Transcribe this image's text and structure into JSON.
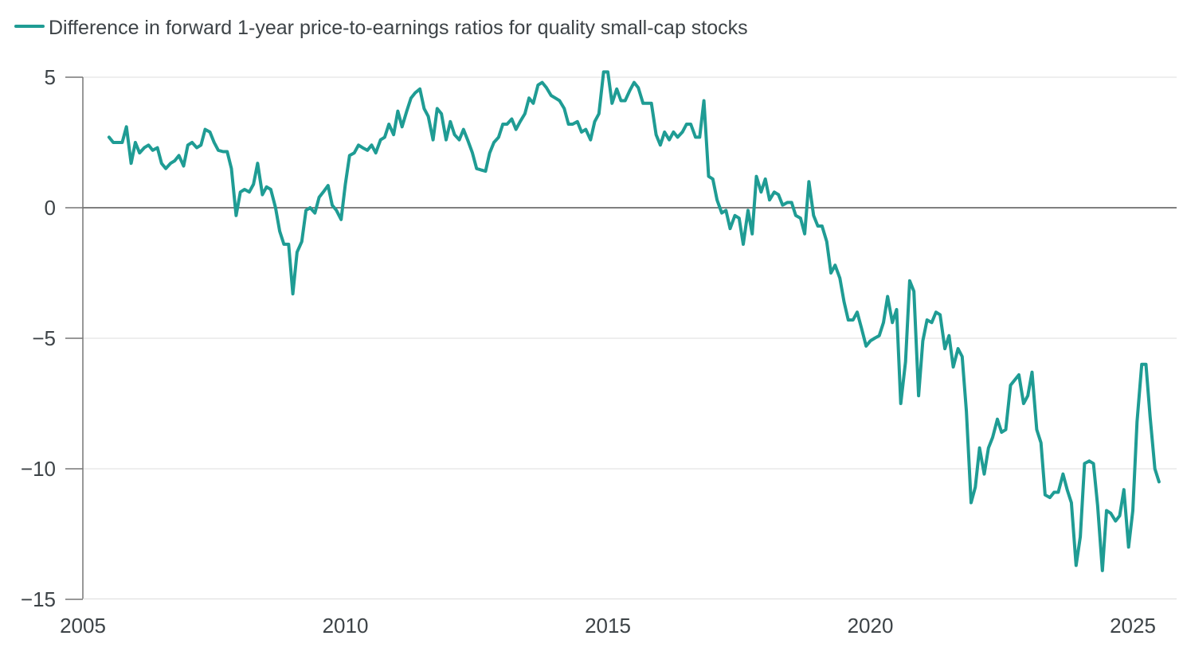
{
  "legend": {
    "label": "Difference in forward 1-year price-to-earnings ratios for quality small-cap stocks"
  },
  "colors": {
    "series": "#1f9c94",
    "grid": "#dcdcdc",
    "zero_line": "#555555",
    "axis": "#777777",
    "text": "#3d4347"
  },
  "chart_data": {
    "type": "line",
    "title": "",
    "xlabel": "",
    "ylabel": "",
    "xlim": [
      2005,
      2025.7
    ],
    "ylim": [
      -15,
      5
    ],
    "grid": true,
    "legend_position": "top-left",
    "x_ticks": [
      2005,
      2010,
      2015,
      2020,
      2025
    ],
    "x_tick_labels": [
      "2005",
      "2010",
      "2015",
      "2020",
      "2025"
    ],
    "y_ticks": [
      5,
      0,
      -5,
      -10,
      -15
    ],
    "y_tick_labels": [
      "5",
      "0",
      "−5",
      "−10",
      "−15"
    ],
    "series": [
      {
        "name": "Difference in forward 1-year price-to-earnings ratios for quality small-cap stocks",
        "x": [
          2005.5,
          2005.58,
          2005.67,
          2005.75,
          2005.83,
          2005.92,
          2006.0,
          2006.08,
          2006.17,
          2006.25,
          2006.33,
          2006.42,
          2006.5,
          2006.58,
          2006.67,
          2006.75,
          2006.83,
          2006.92,
          2007.0,
          2007.08,
          2007.17,
          2007.25,
          2007.33,
          2007.42,
          2007.5,
          2007.58,
          2007.67,
          2007.75,
          2007.83,
          2007.92,
          2008.0,
          2008.08,
          2008.17,
          2008.25,
          2008.33,
          2008.42,
          2008.5,
          2008.58,
          2008.67,
          2008.75,
          2008.83,
          2008.92,
          2009.0,
          2009.08,
          2009.17,
          2009.25,
          2009.33,
          2009.42,
          2009.5,
          2009.58,
          2009.67,
          2009.75,
          2009.83,
          2009.92,
          2010.0,
          2010.08,
          2010.17,
          2010.25,
          2010.33,
          2010.42,
          2010.5,
          2010.58,
          2010.67,
          2010.75,
          2010.83,
          2010.92,
          2011.0,
          2011.08,
          2011.17,
          2011.25,
          2011.33,
          2011.42,
          2011.5,
          2011.58,
          2011.67,
          2011.75,
          2011.83,
          2011.92,
          2012.0,
          2012.08,
          2012.17,
          2012.25,
          2012.33,
          2012.42,
          2012.5,
          2012.58,
          2012.67,
          2012.75,
          2012.83,
          2012.92,
          2013.0,
          2013.08,
          2013.17,
          2013.25,
          2013.33,
          2013.42,
          2013.5,
          2013.58,
          2013.67,
          2013.75,
          2013.83,
          2013.92,
          2014.0,
          2014.08,
          2014.17,
          2014.25,
          2014.33,
          2014.42,
          2014.5,
          2014.58,
          2014.67,
          2014.75,
          2014.83,
          2014.92,
          2015.0,
          2015.08,
          2015.17,
          2015.25,
          2015.33,
          2015.42,
          2015.5,
          2015.58,
          2015.67,
          2015.75,
          2015.83,
          2015.92,
          2016.0,
          2016.08,
          2016.17,
          2016.25,
          2016.33,
          2016.42,
          2016.5,
          2016.58,
          2016.67,
          2016.75,
          2016.83,
          2016.92,
          2017.0,
          2017.08,
          2017.17,
          2017.25,
          2017.33,
          2017.42,
          2017.5,
          2017.58,
          2017.67,
          2017.75,
          2017.83,
          2017.92,
          2018.0,
          2018.08,
          2018.17,
          2018.25,
          2018.33,
          2018.42,
          2018.5,
          2018.58,
          2018.67,
          2018.75,
          2018.83,
          2018.92,
          2019.0,
          2019.08,
          2019.17,
          2019.25,
          2019.33,
          2019.42,
          2019.5,
          2019.58,
          2019.67,
          2019.75,
          2019.83,
          2019.92,
          2020.0,
          2020.08,
          2020.17,
          2020.25,
          2020.33,
          2020.42,
          2020.5,
          2020.58,
          2020.67,
          2020.75,
          2020.83,
          2020.92,
          2021.0,
          2021.08,
          2021.17,
          2021.25,
          2021.33,
          2021.42,
          2021.5,
          2021.58,
          2021.67,
          2021.75,
          2021.83,
          2021.92,
          2022.0,
          2022.08,
          2022.17,
          2022.25,
          2022.33,
          2022.42,
          2022.5,
          2022.58,
          2022.67,
          2022.75,
          2022.83,
          2022.92,
          2023.0,
          2023.08,
          2023.17,
          2023.25,
          2023.33,
          2023.42,
          2023.5,
          2023.58,
          2023.67,
          2023.75,
          2023.83,
          2023.92,
          2024.0,
          2024.08,
          2024.17,
          2024.25,
          2024.33,
          2024.42,
          2024.5,
          2024.58,
          2024.67,
          2024.75,
          2024.83,
          2024.92,
          2025.0,
          2025.08,
          2025.17,
          2025.25,
          2025.33,
          2025.42,
          2025.5
        ],
        "values": [
          2.7,
          2.5,
          2.5,
          2.5,
          3.1,
          1.7,
          2.5,
          2.1,
          2.3,
          2.4,
          2.2,
          2.3,
          1.7,
          1.5,
          1.7,
          1.8,
          2.0,
          1.6,
          2.4,
          2.5,
          2.3,
          2.4,
          3.0,
          2.9,
          2.5,
          2.2,
          2.15,
          2.15,
          1.5,
          -0.3,
          0.6,
          0.7,
          0.6,
          0.9,
          1.7,
          0.5,
          0.8,
          0.7,
          0.0,
          -0.9,
          -1.4,
          -1.4,
          -3.3,
          -1.7,
          -1.3,
          -0.1,
          0.0,
          -0.2,
          0.4,
          0.6,
          0.85,
          0.1,
          -0.1,
          -0.45,
          0.9,
          2.0,
          2.1,
          2.4,
          2.3,
          2.2,
          2.4,
          2.1,
          2.6,
          2.7,
          3.2,
          2.8,
          3.7,
          3.1,
          3.7,
          4.2,
          4.4,
          4.55,
          3.8,
          3.5,
          2.6,
          3.8,
          3.6,
          2.6,
          3.3,
          2.8,
          2.6,
          3.0,
          2.6,
          2.1,
          1.5,
          1.45,
          1.4,
          2.1,
          2.5,
          2.7,
          3.2,
          3.2,
          3.4,
          3.0,
          3.3,
          3.6,
          4.2,
          4.0,
          4.7,
          4.8,
          4.6,
          4.3,
          4.2,
          4.1,
          3.8,
          3.2,
          3.2,
          3.3,
          2.9,
          3.0,
          2.6,
          3.3,
          3.6,
          5.2,
          5.2,
          4.0,
          4.55,
          4.1,
          4.1,
          4.5,
          4.8,
          4.6,
          4.0,
          4.0,
          4.0,
          2.8,
          2.4,
          2.9,
          2.6,
          2.9,
          2.7,
          2.9,
          3.2,
          3.2,
          2.7,
          2.7,
          4.1,
          1.2,
          1.1,
          0.3,
          -0.2,
          -0.1,
          -0.8,
          -0.3,
          -0.4,
          -1.4,
          -0.1,
          -1.0,
          1.2,
          0.6,
          1.1,
          0.3,
          0.6,
          0.5,
          0.1,
          0.2,
          0.2,
          -0.3,
          -0.4,
          -1.0,
          1.0,
          -0.3,
          -0.7,
          -0.7,
          -1.3,
          -2.5,
          -2.2,
          -2.7,
          -3.6,
          -4.3,
          -4.3,
          -4.0,
          -4.6,
          -5.3,
          -5.1,
          -5.0,
          -4.9,
          -4.4,
          -3.4,
          -4.4,
          -3.9,
          -7.5,
          -5.9,
          -2.8,
          -3.2,
          -7.2,
          -5.1,
          -4.3,
          -4.4,
          -4.0,
          -4.1,
          -5.4,
          -4.9,
          -6.1,
          -5.4,
          -5.7,
          -7.8,
          -11.3,
          -10.7,
          -9.2,
          -10.2,
          -9.2,
          -8.8,
          -8.1,
          -8.6,
          -8.5,
          -6.8,
          -6.6,
          -6.4,
          -7.5,
          -7.2,
          -6.3,
          -8.5,
          -9.0,
          -11.0,
          -11.1,
          -10.9,
          -10.9,
          -10.2,
          -10.8,
          -11.3,
          -13.7,
          -12.6,
          -9.8,
          -9.7,
          -9.8,
          -11.4,
          -13.9,
          -11.6,
          -11.7,
          -12.0,
          -11.8,
          -10.8,
          -13.0,
          -11.6,
          -8.2,
          -6.0,
          -6.0,
          -8.0,
          -10.0,
          -10.5
        ]
      }
    ]
  }
}
